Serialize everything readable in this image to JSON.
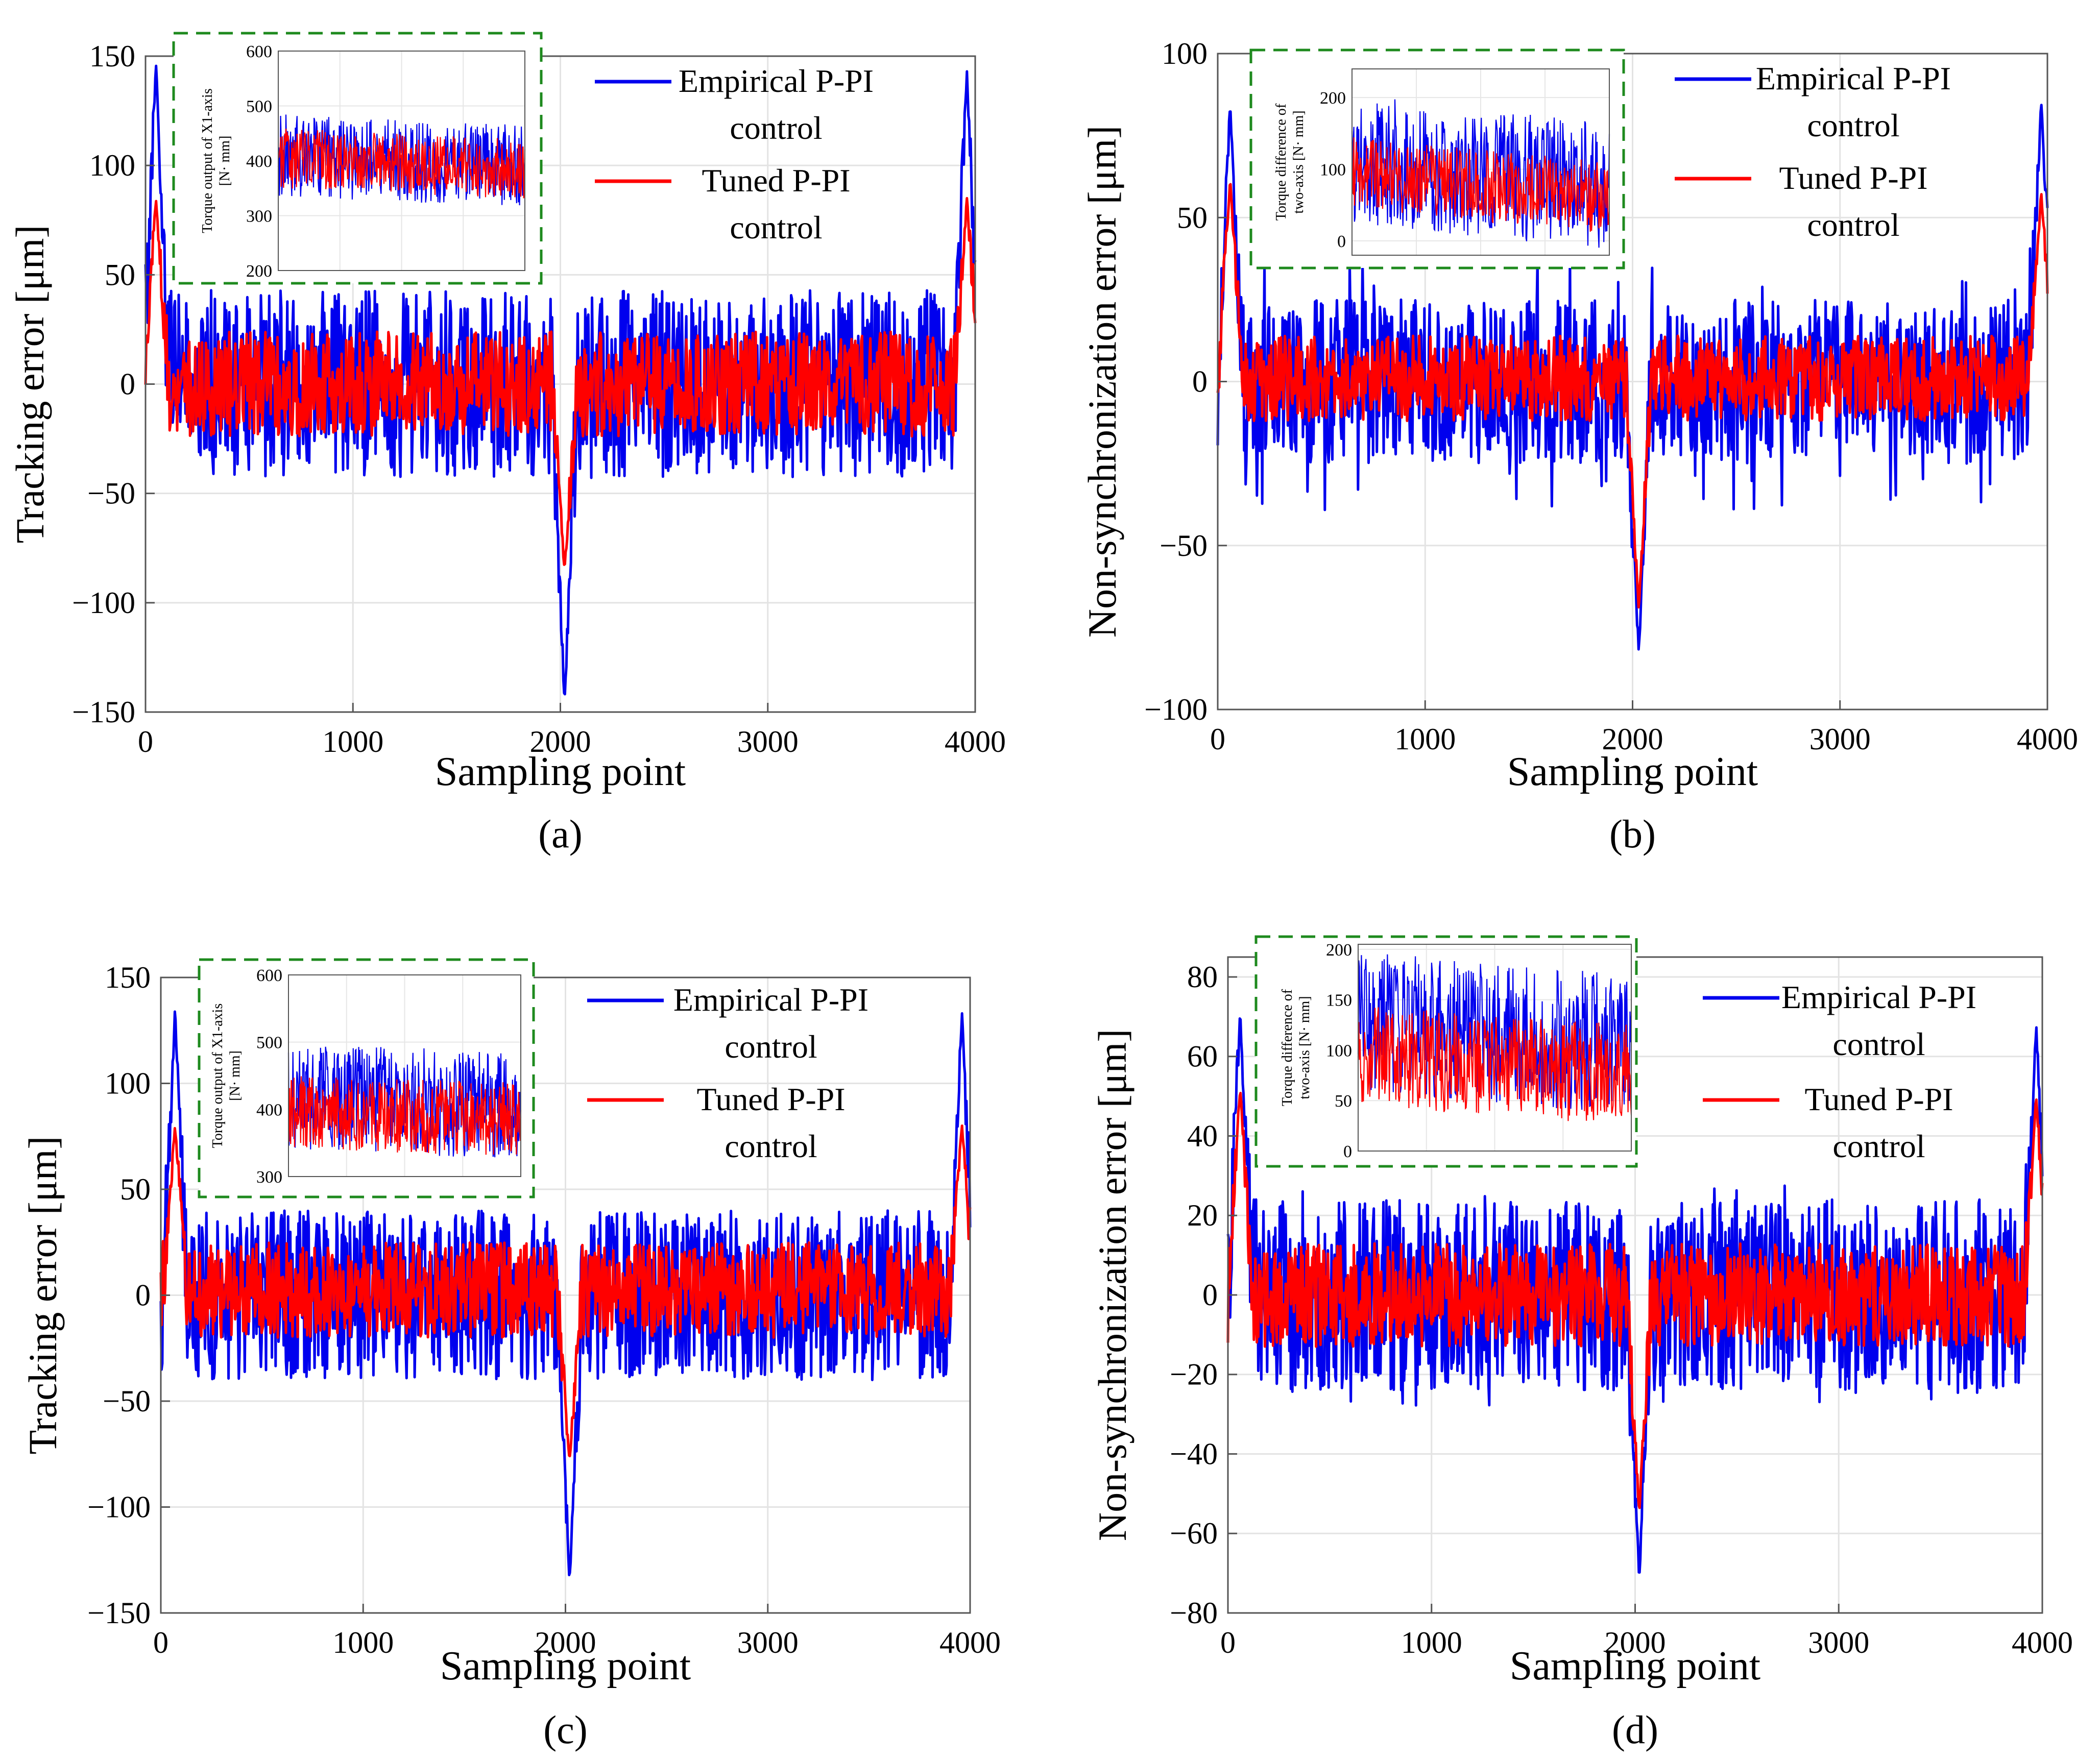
{
  "chart_data": [
    {
      "type": "line",
      "panel_label": "(a)",
      "title": "",
      "xlabel": "Sampling point",
      "ylabel": "Tracking error [μm]",
      "xlim": [
        0,
        4000
      ],
      "ylim": [
        -150,
        150
      ],
      "xticks": [
        0,
        1000,
        2000,
        3000,
        4000
      ],
      "yticks": [
        -150,
        -100,
        -50,
        0,
        50,
        100,
        150
      ],
      "ytick_labels": [
        "−150",
        "−100",
        "−50",
        "0",
        "50",
        "100",
        "150"
      ],
      "grid": true,
      "legend_position": "top-right",
      "series": [
        {
          "name": "Empirical P-PI control",
          "legend_lines": [
            "Empirical P-PI",
            "control"
          ],
          "color": "#0000ee",
          "band": [
            -43,
            43
          ],
          "peaks": [
            {
              "x": 50,
              "y": 148
            },
            {
              "x": 2020,
              "y": -147
            },
            {
              "x": 3960,
              "y": 143
            }
          ],
          "seed": 11
        },
        {
          "name": "Tuned P-PI control",
          "legend_lines": [
            "Tuned P-PI",
            "control"
          ],
          "color": "#ff0000",
          "band": [
            -24,
            24
          ],
          "peaks": [
            {
              "x": 50,
              "y": 85
            },
            {
              "x": 2020,
              "y": -85
            },
            {
              "x": 3960,
              "y": 85
            }
          ],
          "seed": 12
        }
      ],
      "inset": {
        "ylabel_lines": [
          "Torque output of X1-axis",
          "[N· mm]"
        ],
        "ylim": [
          200,
          600
        ],
        "yticks": [
          200,
          300,
          400,
          500,
          600
        ],
        "series": [
          {
            "name": "Empirical P-PI control",
            "color": "#0000ee",
            "center": 410,
            "half": 75,
            "trend": -20,
            "seed": 13
          },
          {
            "name": "Tuned P-PI control",
            "color": "#ff0000",
            "center": 405,
            "half": 55,
            "trend": -20,
            "seed": 14
          }
        ]
      }
    },
    {
      "type": "line",
      "panel_label": "(b)",
      "title": "",
      "xlabel": "Sampling point",
      "ylabel": "Non-synchronization error [μm]",
      "xlim": [
        0,
        4000
      ],
      "ylim": [
        -100,
        100
      ],
      "xticks": [
        0,
        1000,
        2000,
        3000,
        4000
      ],
      "yticks": [
        -100,
        -50,
        0,
        50,
        100
      ],
      "ytick_labels": [
        "−100",
        "−50",
        "0",
        "50",
        "100"
      ],
      "grid": true,
      "legend_position": "top-right",
      "series": [
        {
          "name": "Empirical P-PI control",
          "legend_lines": [
            "Empirical P-PI",
            "control"
          ],
          "color": "#0000ee",
          "band": [
            -25,
            25
          ],
          "spikes": [
            -40,
            40
          ],
          "peaks": [
            {
              "x": 60,
              "y": 85
            },
            {
              "x": 2030,
              "y": -83
            },
            {
              "x": 3970,
              "y": 86
            }
          ],
          "seed": 21
        },
        {
          "name": "Tuned P-PI control",
          "legend_lines": [
            "Tuned P-PI",
            "control"
          ],
          "color": "#ff0000",
          "band": [
            -12,
            14
          ],
          "peaks": [
            {
              "x": 60,
              "y": 62
            },
            {
              "x": 2030,
              "y": -70
            },
            {
              "x": 3970,
              "y": 58
            }
          ],
          "seed": 22
        }
      ],
      "inset": {
        "ylabel_lines": [
          "Torque difference of",
          "two-axis [N· mm]"
        ],
        "ylim": [
          -20,
          240
        ],
        "yticks": [
          0,
          100,
          200
        ],
        "series": [
          {
            "name": "Empirical P-PI control",
            "color": "#0000ee",
            "center": 115,
            "half": 90,
            "trend": -40,
            "seed": 23
          },
          {
            "name": "Tuned P-PI control",
            "color": "#ff0000",
            "center": 95,
            "half": 50,
            "trend": -35,
            "seed": 24
          }
        ]
      }
    },
    {
      "type": "line",
      "panel_label": "(c)",
      "title": "",
      "xlabel": "Sampling point",
      "ylabel": "Tracking error [μm]",
      "xlim": [
        0,
        4000
      ],
      "ylim": [
        -150,
        150
      ],
      "xticks": [
        0,
        1000,
        2000,
        3000,
        4000
      ],
      "yticks": [
        -150,
        -100,
        -50,
        0,
        50,
        100,
        150
      ],
      "ytick_labels": [
        "−150",
        "−100",
        "−50",
        "0",
        "50",
        "100",
        "150"
      ],
      "grid": true,
      "legend_position": "top-right",
      "series": [
        {
          "name": "Empirical P-PI control",
          "legend_lines": [
            "Empirical P-PI",
            "control"
          ],
          "color": "#0000ee",
          "band": [
            -40,
            40
          ],
          "peaks": [
            {
              "x": 70,
              "y": 136
            },
            {
              "x": 2020,
              "y": -135
            },
            {
              "x": 3960,
              "y": 133
            }
          ],
          "seed": 31
        },
        {
          "name": "Tuned P-PI control",
          "legend_lines": [
            "Tuned P-PI",
            "control"
          ],
          "color": "#ff0000",
          "band": [
            -20,
            25
          ],
          "peaks": [
            {
              "x": 70,
              "y": 80
            },
            {
              "x": 2020,
              "y": -78
            },
            {
              "x": 3960,
              "y": 80
            }
          ],
          "seed": 32
        }
      ],
      "inset": {
        "ylabel_lines": [
          "Torque output of X1-axis",
          "[N· mm]"
        ],
        "ylim": [
          300,
          600
        ],
        "yticks": [
          300,
          400,
          500,
          600
        ],
        "series": [
          {
            "name": "Empirical P-PI control",
            "color": "#0000ee",
            "center": 420,
            "half": 80,
            "trend": -15,
            "seed": 33
          },
          {
            "name": "Tuned P-PI control",
            "color": "#ff0000",
            "center": 395,
            "half": 55,
            "trend": -10,
            "seed": 34
          }
        ]
      }
    },
    {
      "type": "line",
      "panel_label": "(d)",
      "title": "",
      "xlabel": "Sampling point",
      "ylabel": "Non-synchronization error [μm]",
      "xlim": [
        0,
        4000
      ],
      "ylim": [
        -80,
        85
      ],
      "xticks": [
        0,
        1000,
        2000,
        3000,
        4000
      ],
      "yticks": [
        -80,
        -60,
        -40,
        -20,
        0,
        20,
        40,
        60,
        80
      ],
      "ytick_labels": [
        "−80",
        "−60",
        "−40",
        "−20",
        "0",
        "20",
        "40",
        "60",
        "80"
      ],
      "grid": true,
      "legend_position": "top-right",
      "series": [
        {
          "name": "Empirical P-PI control",
          "legend_lines": [
            "Empirical P-PI",
            "control"
          ],
          "color": "#0000ee",
          "band": [
            -24,
            24
          ],
          "spikes": [
            -28,
            28
          ],
          "peaks": [
            {
              "x": 60,
              "y": 72
            },
            {
              "x": 2020,
              "y": -72
            },
            {
              "x": 3970,
              "y": 68
            }
          ],
          "seed": 41
        },
        {
          "name": "Tuned P-PI control",
          "legend_lines": [
            "Tuned P-PI",
            "control"
          ],
          "color": "#ff0000",
          "band": [
            -13,
            13
          ],
          "peaks": [
            {
              "x": 60,
              "y": 52
            },
            {
              "x": 2020,
              "y": -55
            },
            {
              "x": 3970,
              "y": 50
            }
          ],
          "seed": 42
        }
      ],
      "inset": {
        "ylabel_lines": [
          "Torque difference of",
          "two-axis [N· mm]"
        ],
        "ylim": [
          0,
          205
        ],
        "yticks": [
          0,
          50,
          100,
          150,
          200
        ],
        "series": [
          {
            "name": "Empirical P-PI control",
            "color": "#0000ee",
            "center": 130,
            "half": 70,
            "trend": -25,
            "seed": 43
          },
          {
            "name": "Tuned P-PI control",
            "color": "#ff0000",
            "center": 95,
            "half": 50,
            "trend": -20,
            "seed": 44
          }
        ]
      }
    }
  ]
}
